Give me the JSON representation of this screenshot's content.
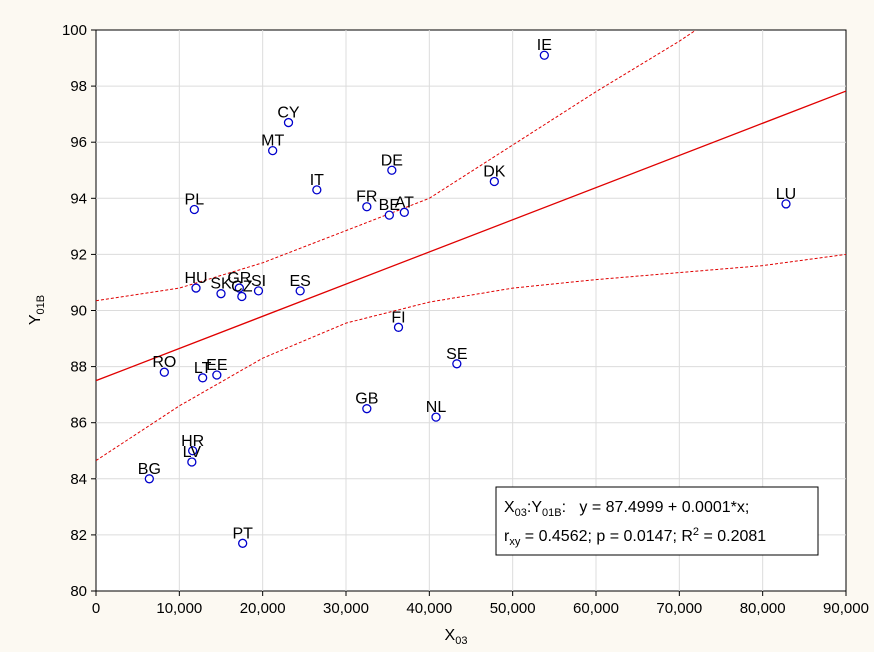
{
  "chart_data": {
    "type": "scatter",
    "title": "",
    "xlabel": "X03",
    "xlabel_main": "X",
    "xlabel_sub": "03",
    "ylabel": "Y01B",
    "ylabel_main": "Y",
    "ylabel_sub": "01B",
    "xlim": [
      0,
      90000
    ],
    "ylim": [
      80,
      100
    ],
    "x_ticks": [
      0,
      10000,
      20000,
      30000,
      40000,
      50000,
      60000,
      70000,
      80000,
      90000
    ],
    "x_tick_labels": [
      "0",
      "10,000",
      "20,000",
      "30,000",
      "40,000",
      "50,000",
      "60,000",
      "70,000",
      "80,000",
      "90,000"
    ],
    "y_ticks": [
      80,
      82,
      84,
      86,
      88,
      90,
      92,
      94,
      96,
      98,
      100
    ],
    "y_tick_labels": [
      "80",
      "82",
      "84",
      "86",
      "88",
      "90",
      "92",
      "94",
      "96",
      "98",
      "100"
    ],
    "grid": true,
    "colors": {
      "background": "#fcf9f2",
      "plot_background": "#ffffff",
      "grid": "#dcdcdc",
      "points": "#0000cc",
      "regression": "#e00000"
    },
    "points": [
      {
        "label": "IE",
        "x": 53800,
        "y": 99.1
      },
      {
        "label": "CY",
        "x": 23100,
        "y": 96.7
      },
      {
        "label": "MT",
        "x": 21200,
        "y": 95.7
      },
      {
        "label": "DE",
        "x": 35500,
        "y": 95.0
      },
      {
        "label": "IT",
        "x": 26500,
        "y": 94.3
      },
      {
        "label": "DK",
        "x": 47800,
        "y": 94.6
      },
      {
        "label": "LU",
        "x": 82800,
        "y": 93.8
      },
      {
        "label": "PL",
        "x": 11800,
        "y": 93.6
      },
      {
        "label": "FR",
        "x": 32500,
        "y": 93.7
      },
      {
        "label": "BE",
        "x": 35200,
        "y": 93.4
      },
      {
        "label": "AT",
        "x": 37000,
        "y": 93.5
      },
      {
        "label": "GR",
        "x": 17200,
        "y": 90.8
      },
      {
        "label": "SI",
        "x": 19500,
        "y": 90.7
      },
      {
        "label": "HU",
        "x": 12000,
        "y": 90.8
      },
      {
        "label": "SK",
        "x": 15000,
        "y": 90.6
      },
      {
        "label": "CZ",
        "x": 17500,
        "y": 90.5
      },
      {
        "label": "ES",
        "x": 24500,
        "y": 90.7
      },
      {
        "label": "FI",
        "x": 36300,
        "y": 89.4
      },
      {
        "label": "RO",
        "x": 8200,
        "y": 87.8
      },
      {
        "label": "LT",
        "x": 12800,
        "y": 87.6
      },
      {
        "label": "EE",
        "x": 14500,
        "y": 87.7
      },
      {
        "label": "SE",
        "x": 43300,
        "y": 88.1
      },
      {
        "label": "GB",
        "x": 32500,
        "y": 86.5
      },
      {
        "label": "NL",
        "x": 40800,
        "y": 86.2
      },
      {
        "label": "HR",
        "x": 11600,
        "y": 85.0
      },
      {
        "label": "LV",
        "x": 11500,
        "y": 84.6
      },
      {
        "label": "BG",
        "x": 6400,
        "y": 84.0
      },
      {
        "label": "PT",
        "x": 17600,
        "y": 81.7
      }
    ],
    "regression": {
      "intercept": 87.4999,
      "slope": 0.0001147,
      "ci_upper": [
        [
          0,
          90.35
        ],
        [
          10000,
          90.8
        ],
        [
          20000,
          91.7
        ],
        [
          30000,
          92.85
        ],
        [
          40000,
          94.0
        ],
        [
          50000,
          95.9
        ],
        [
          60000,
          97.8
        ],
        [
          70000,
          99.6
        ],
        [
          72000,
          100.0
        ]
      ],
      "ci_lower": [
        [
          0,
          84.65
        ],
        [
          10000,
          86.6
        ],
        [
          20000,
          88.3
        ],
        [
          30000,
          89.55
        ],
        [
          40000,
          90.3
        ],
        [
          50000,
          90.8
        ],
        [
          60000,
          91.1
        ],
        [
          70000,
          91.35
        ],
        [
          80000,
          91.6
        ],
        [
          90000,
          92.0
        ]
      ]
    },
    "stats": {
      "line1_var": "X",
      "line1_sub1": "03",
      "line1_mid": ":Y",
      "line1_sub2": "01B",
      "line1_eq": ":   y = 87.4999 + 0.0001*x;",
      "line2_r": "r",
      "line2_rsub": "xy",
      "line2_rest": " = 0.4562; p = 0.0147; R",
      "line2_sup": "2",
      "line2_end": " = 0.2081"
    }
  }
}
